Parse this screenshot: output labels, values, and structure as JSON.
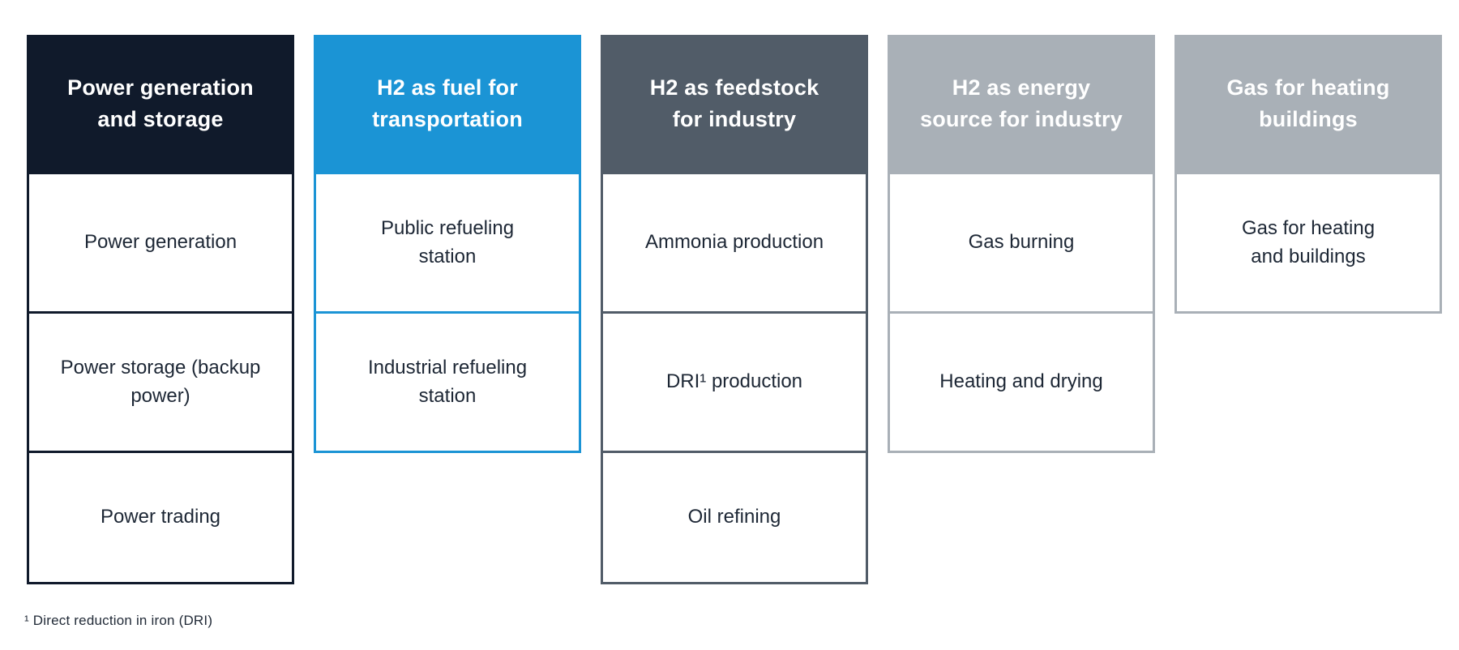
{
  "colors": {
    "navy": "#101a2b",
    "blue": "#1b94d5",
    "slate": "#515c68",
    "gray": "#a9b0b7",
    "header_text": "#ffffff",
    "cell_text": "#1d2735",
    "background": "#ffffff"
  },
  "columns": [
    {
      "id": "power-generation-and-storage",
      "header": "Power generation and storage",
      "header_lines": [
        "Power generation",
        "and storage"
      ],
      "accent_color": "#101a2b",
      "cells": [
        {
          "id": "power-generation",
          "label": "Power generation",
          "lines": [
            "Power generation"
          ]
        },
        {
          "id": "power-storage-backup-power",
          "label": "Power storage (backup power)",
          "lines": [
            "Power storage (backup",
            "power)"
          ]
        },
        {
          "id": "power-trading",
          "label": "Power trading",
          "lines": [
            "Power trading"
          ]
        }
      ]
    },
    {
      "id": "h2-as-fuel-for-transportation",
      "header": "H2 as fuel for transportation",
      "header_lines": [
        "H2 as fuel for",
        "transportation"
      ],
      "accent_color": "#1b94d5",
      "cells": [
        {
          "id": "public-refueling-station",
          "label": "Public refueling station",
          "lines": [
            "Public refueling",
            "station"
          ]
        },
        {
          "id": "industrial-refueling-station",
          "label": "Industrial refueling station",
          "lines": [
            "Industrial refueling",
            "station"
          ]
        }
      ]
    },
    {
      "id": "h2-as-feedstock-for-industry",
      "header": "H2 as feedstock for industry",
      "header_lines": [
        "H2 as feedstock",
        "for industry"
      ],
      "accent_color": "#515c68",
      "cells": [
        {
          "id": "ammonia-production",
          "label": "Ammonia production",
          "lines": [
            "Ammonia production"
          ]
        },
        {
          "id": "dri-production",
          "label": "DRI¹ production",
          "lines": [
            "DRI¹ production"
          ]
        },
        {
          "id": "oil-refining",
          "label": "Oil refining",
          "lines": [
            "Oil refining"
          ]
        }
      ]
    },
    {
      "id": "h2-as-energy-source-for-industry",
      "header": "H2 as energy source for industry",
      "header_lines": [
        "H2 as energy",
        "source for industry"
      ],
      "accent_color": "#a9b0b7",
      "cells": [
        {
          "id": "gas-burning",
          "label": "Gas burning",
          "lines": [
            "Gas burning"
          ]
        },
        {
          "id": "heating-and-drying",
          "label": "Heating and drying",
          "lines": [
            "Heating and drying"
          ]
        }
      ]
    },
    {
      "id": "gas-for-heating-buildings",
      "header": "Gas for heating buildings",
      "header_lines": [
        "Gas for heating",
        "buildings"
      ],
      "accent_color": "#a9b0b7",
      "cells": [
        {
          "id": "gas-for-heating-and-buildings",
          "label": "Gas for heating and buildings",
          "lines": [
            "Gas for heating",
            "and buildings"
          ]
        }
      ]
    }
  ],
  "footnote": "¹ Direct reduction in iron (DRI)"
}
